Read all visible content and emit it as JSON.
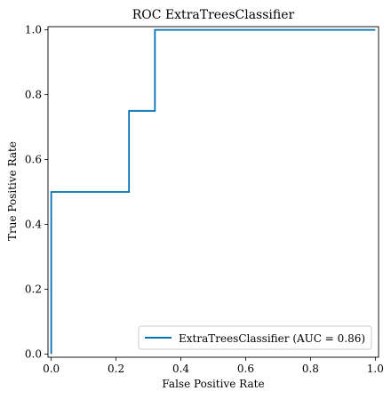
{
  "chart_data": {
    "type": "line",
    "title": "ROC ExtraTreesClassifier",
    "xlabel": "False Positive Rate",
    "ylabel": "True Positive Rate",
    "xlim": [
      -0.01,
      1.01
    ],
    "ylim": [
      -0.01,
      1.01
    ],
    "xticks": [
      "0.0",
      "0.2",
      "0.4",
      "0.6",
      "0.8",
      "1.0"
    ],
    "yticks": [
      "0.0",
      "0.2",
      "0.4",
      "0.6",
      "0.8",
      "1.0"
    ],
    "grid": false,
    "legend_position": "lower-right",
    "series": [
      {
        "name": "ExtraTreesClassifier (AUC = 0.86)",
        "color": "#0072b2",
        "x": [
          0.0,
          0.0,
          0.0,
          0.24,
          0.24,
          0.32,
          0.32,
          1.0
        ],
        "y": [
          0.0,
          0.0,
          0.5,
          0.5,
          0.75,
          0.75,
          1.0,
          1.0
        ]
      }
    ]
  }
}
